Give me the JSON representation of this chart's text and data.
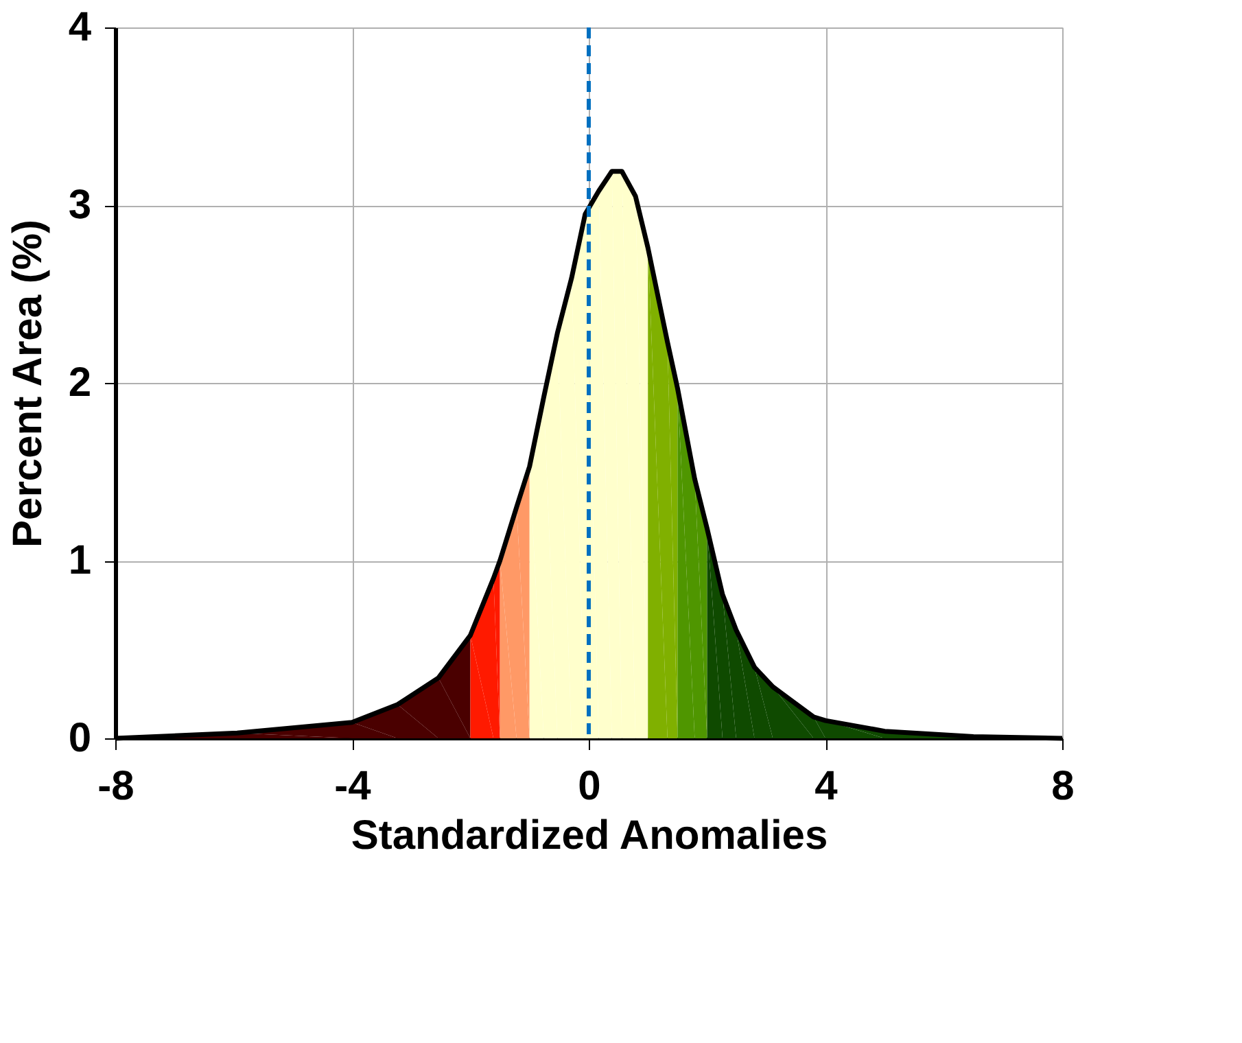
{
  "chart_data": {
    "type": "area",
    "xlabel": "Standardized Anomalies",
    "ylabel": "Percent Area (%)",
    "xlim": [
      -8,
      8
    ],
    "xticks": [
      -8,
      -4,
      0,
      4,
      8
    ],
    "ylim": [
      0,
      4
    ],
    "yticks": [
      0,
      1,
      2,
      3,
      4
    ],
    "grid": true,
    "ref_lines": [
      {
        "axis": "x",
        "value": 0,
        "color": "#0070c0",
        "line_style": "dashed"
      }
    ],
    "series": [
      {
        "color": "#4a0000",
        "x": [
          -8,
          -5.94,
          -4,
          -3.23,
          -2.54,
          -2
        ],
        "values": [
          0,
          0.03,
          0.09,
          0.19,
          0.34,
          0.58
        ]
      },
      {
        "color": "#ff1a00",
        "x": [
          -2,
          -1.61,
          -1.5
        ],
        "values": [
          0.58,
          0.9,
          1.0
        ]
      },
      {
        "color": "#ff9966",
        "x": [
          -1.5,
          -1.22,
          -1
        ],
        "values": [
          1.0,
          1.3,
          1.53
        ]
      },
      {
        "color": "#ffffcc",
        "x": [
          -1,
          -0.76,
          -0.53,
          -0.29,
          -0.06,
          0.17,
          0.39,
          0.56,
          0.79,
          1
        ],
        "values": [
          1.53,
          1.92,
          2.28,
          2.59,
          2.95,
          3.08,
          3.19,
          3.19,
          3.05,
          2.76
        ]
      },
      {
        "color": "#80b000",
        "x": [
          1,
          1.33,
          1.5
        ],
        "values": [
          2.76,
          2.23,
          1.97
        ]
      },
      {
        "color": "#4f9600",
        "x": [
          1.5,
          1.79,
          2
        ],
        "values": [
          1.97,
          1.46,
          1.18
        ]
      },
      {
        "color": "#0f4a00",
        "x": [
          2,
          2.26,
          2.49,
          2.8,
          3.11,
          3.8,
          4,
          5,
          6.5,
          8
        ],
        "values": [
          1.18,
          0.81,
          0.61,
          0.4,
          0.29,
          0.12,
          0.1,
          0.04,
          0.01,
          0
        ]
      },
      {
        "type": "line",
        "color": "#000000",
        "x": [
          -8,
          -5.94,
          -4,
          -3.23,
          -2.54,
          -2,
          -1.61,
          -1.5,
          -1.22,
          -1,
          -0.76,
          -0.53,
          -0.29,
          -0.06,
          0.17,
          0.39,
          0.56,
          0.79,
          1,
          1.33,
          1.5,
          1.79,
          2,
          2.26,
          2.49,
          2.8,
          3.11,
          3.8,
          4,
          5,
          6.5,
          8
        ],
        "values": [
          0,
          0.03,
          0.09,
          0.19,
          0.34,
          0.58,
          0.9,
          1.0,
          1.3,
          1.53,
          1.92,
          2.28,
          2.59,
          2.95,
          3.08,
          3.19,
          3.19,
          3.05,
          2.76,
          2.23,
          1.97,
          1.46,
          1.18,
          0.81,
          0.61,
          0.4,
          0.29,
          0.12,
          0.1,
          0.04,
          0.01,
          0
        ]
      }
    ]
  }
}
